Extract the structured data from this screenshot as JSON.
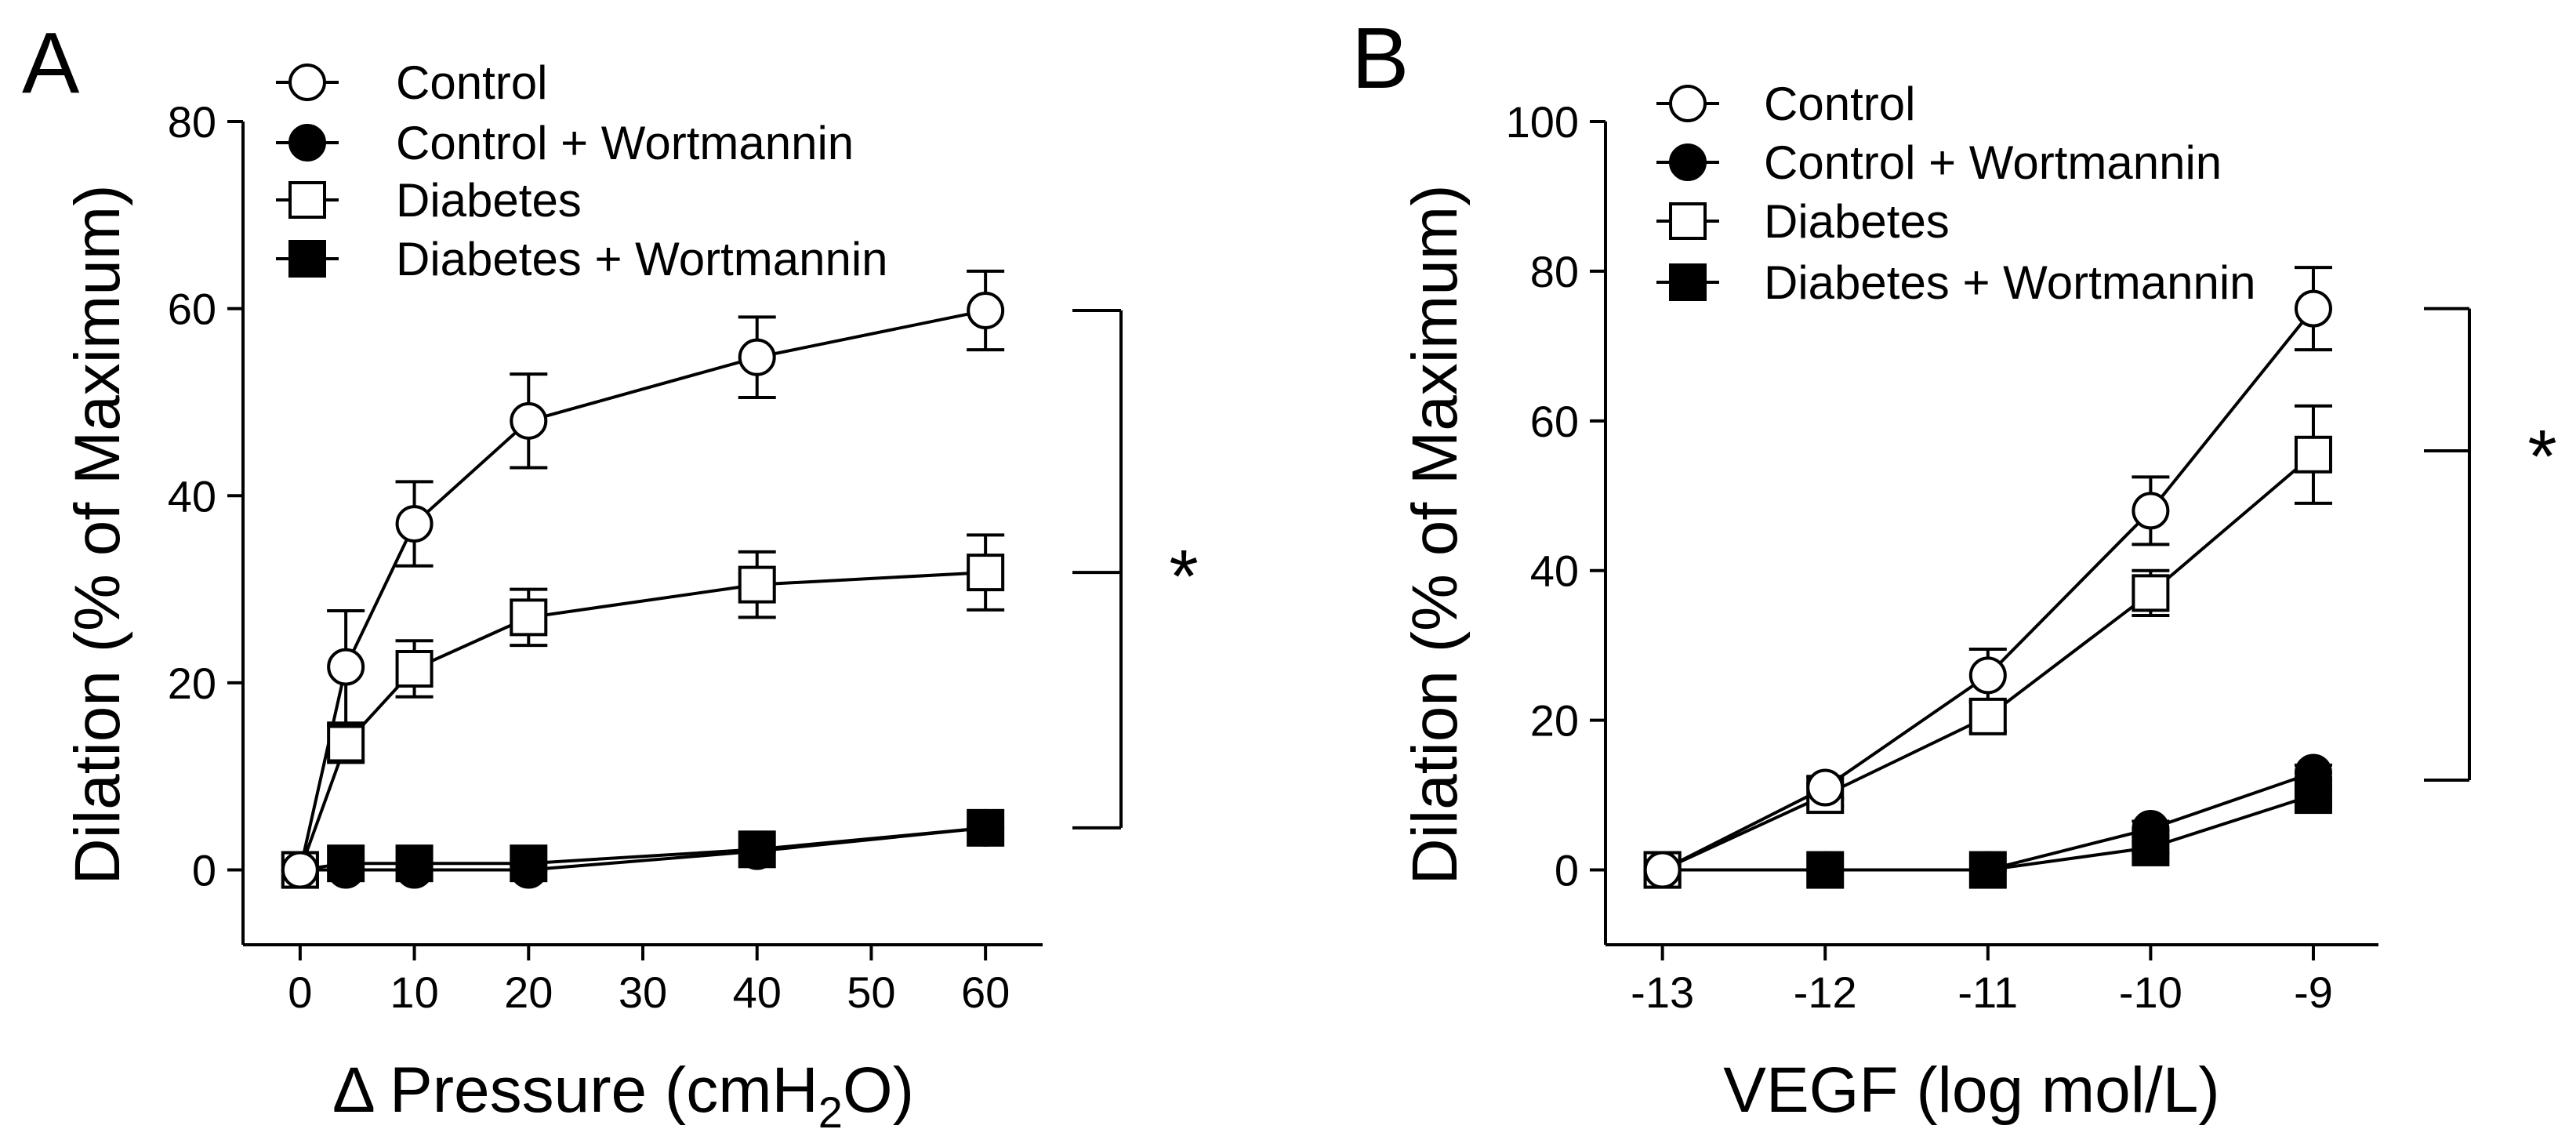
{
  "chart_data": [
    {
      "panel_label": "A",
      "type": "line",
      "ylabel": "Dilation (% of Maximum)",
      "xlabel_prefix": "Δ Pressure (cmH",
      "xlabel_sub": "2",
      "xlabel_suffix": "O)",
      "xlim": [
        -5,
        65
      ],
      "ylim": [
        -8,
        80
      ],
      "xticks": [
        0,
        10,
        20,
        30,
        40,
        50,
        60
      ],
      "xtick_labels": [
        "0",
        "10",
        "20",
        "30",
        "40",
        "50",
        "60"
      ],
      "yticks": [
        0,
        20,
        40,
        60,
        80
      ],
      "ytick_labels": [
        "0",
        "20",
        "40",
        "60",
        "80"
      ],
      "x": [
        0,
        4,
        10,
        20,
        40,
        60
      ],
      "series": [
        {
          "name": "Control",
          "marker": "circle-open",
          "values": [
            0,
            21.7,
            37,
            48,
            54.8,
            59.8
          ],
          "errors": [
            0,
            6,
            4.5,
            5,
            4.3,
            4.2
          ]
        },
        {
          "name": "Control + Wortmannin",
          "marker": "circle-filled",
          "values": [
            0,
            0,
            0,
            0,
            2,
            4.5
          ],
          "errors": [
            0,
            0,
            0,
            0,
            0,
            0
          ]
        },
        {
          "name": "Diabetes",
          "marker": "square-open",
          "values": [
            0,
            13.5,
            21.5,
            27,
            30.5,
            31.8
          ],
          "errors": [
            0,
            2,
            3,
            3,
            3.5,
            4
          ]
        },
        {
          "name": "Diabetes + Wortmannin",
          "marker": "square-filled",
          "values": [
            0,
            0.7,
            0.7,
            0.7,
            2.2,
            4.5
          ],
          "errors": [
            0,
            0,
            0,
            0,
            0,
            0
          ]
        }
      ],
      "significance": {
        "label": "*",
        "bracket_y": [
          59.8,
          31.8,
          4.5
        ]
      }
    },
    {
      "panel_label": "B",
      "type": "line",
      "ylabel": "Dilation (% of Maximum)",
      "xlabel": "VEGF (log mol/L)",
      "xlim": [
        -13.35,
        -8.6
      ],
      "ylim": [
        -10,
        100
      ],
      "xticks": [
        -13,
        -12,
        -11,
        -10,
        -9
      ],
      "xtick_labels": [
        "-13",
        "-12",
        "-11",
        "-10",
        "-9"
      ],
      "yticks": [
        0,
        20,
        40,
        60,
        80,
        100
      ],
      "ytick_labels": [
        "0",
        "20",
        "40",
        "60",
        "80",
        "100"
      ],
      "x": [
        -13,
        -12,
        -11,
        -10,
        -9
      ],
      "series": [
        {
          "name": "Control",
          "marker": "circle-open",
          "values": [
            0,
            11,
            26,
            48,
            75
          ],
          "errors": [
            0,
            1.5,
            3.5,
            4.5,
            5.5
          ]
        },
        {
          "name": "Control + Wortmannin",
          "marker": "circle-filled",
          "values": [
            0,
            0,
            0,
            5.5,
            13
          ],
          "errors": [
            0,
            0,
            0,
            1,
            1
          ]
        },
        {
          "name": "Diabetes",
          "marker": "square-open",
          "values": [
            0,
            10,
            20.5,
            37,
            55.5
          ],
          "errors": [
            0,
            1.5,
            2,
            3,
            6.5
          ]
        },
        {
          "name": "Diabetes + Wortmannin",
          "marker": "square-filled",
          "values": [
            0,
            0,
            0,
            3,
            10
          ],
          "errors": [
            0,
            0,
            0,
            0.8,
            1
          ]
        }
      ],
      "significance": {
        "label": "*",
        "bracket_y": [
          75,
          56,
          12
        ]
      }
    }
  ]
}
